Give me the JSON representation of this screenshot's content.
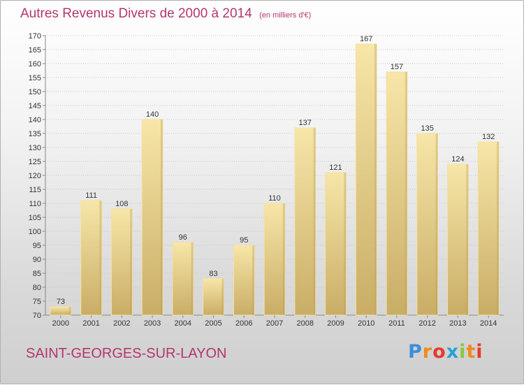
{
  "title": "Autres Revenus Divers de 2000 à 2014",
  "subtitle": "(en milliers d'€)",
  "commune": "SAINT-GEORGES-SUR-LAYON",
  "logo": {
    "letters": [
      "P",
      "r",
      "o",
      "x",
      "i",
      "t",
      "i"
    ],
    "colors": [
      "#3b8fd6",
      "#f08a1c",
      "#e63b2e",
      "#2aa1d4",
      "#8cc63f",
      "#f08a1c",
      "#e63b2e"
    ]
  },
  "colors": {
    "bar_light": "#f7e6a8",
    "bar_dark": "#c9ad66",
    "title": "#b4366c"
  },
  "chart_data": {
    "type": "bar",
    "categories": [
      "2000",
      "2001",
      "2002",
      "2003",
      "2004",
      "2005",
      "2006",
      "2007",
      "2008",
      "2009",
      "2010",
      "2011",
      "2012",
      "2013",
      "2014"
    ],
    "values": [
      73,
      111,
      108,
      140,
      96,
      83,
      95,
      110,
      137,
      121,
      167,
      157,
      135,
      124,
      132
    ],
    "ylim": [
      70,
      170
    ],
    "ytick_step": 5,
    "grid": true,
    "xlabel": "",
    "ylabel": ""
  }
}
